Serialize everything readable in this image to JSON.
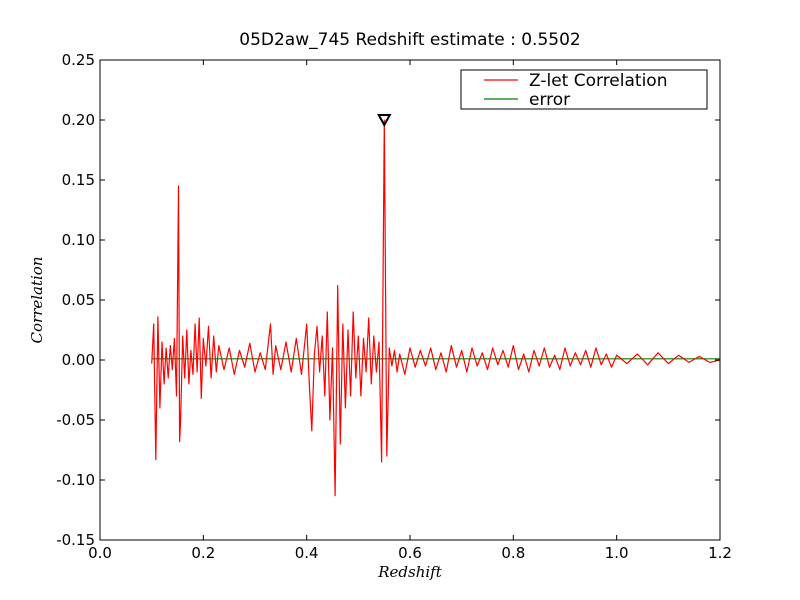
{
  "chart_data": {
    "type": "line",
    "title": "05D2aw_745 Redshift estimate : 0.5502",
    "xlabel": "Redshift",
    "ylabel": "Correlation",
    "xlim": [
      0.0,
      1.2
    ],
    "ylim": [
      -0.15,
      0.25
    ],
    "x_ticks": [
      0.0,
      0.2,
      0.4,
      0.6,
      0.8,
      1.0,
      1.2
    ],
    "x_tick_labels": [
      "0.0",
      "0.2",
      "0.4",
      "0.6",
      "0.8",
      "1.0",
      "1.2"
    ],
    "y_ticks": [
      -0.15,
      -0.1,
      -0.05,
      0.0,
      0.05,
      0.1,
      0.15,
      0.2,
      0.25
    ],
    "y_tick_labels": [
      "-0.15",
      "-0.10",
      "-0.05",
      "0.00",
      "0.05",
      "0.10",
      "0.15",
      "0.20",
      "0.25"
    ],
    "legend_position": "top-right",
    "marker": {
      "x": 0.5502,
      "y": 0.2,
      "symbol": "down-triangle"
    },
    "series": [
      {
        "name": "Z-let Correlation",
        "color": "#ff0000",
        "x": [
          0.1,
          0.104,
          0.108,
          0.112,
          0.116,
          0.12,
          0.124,
          0.128,
          0.132,
          0.136,
          0.14,
          0.144,
          0.148,
          0.152,
          0.154,
          0.156,
          0.16,
          0.164,
          0.168,
          0.172,
          0.176,
          0.18,
          0.184,
          0.188,
          0.192,
          0.196,
          0.2,
          0.205,
          0.21,
          0.215,
          0.22,
          0.225,
          0.23,
          0.24,
          0.25,
          0.26,
          0.27,
          0.28,
          0.29,
          0.3,
          0.31,
          0.32,
          0.33,
          0.335,
          0.34,
          0.35,
          0.36,
          0.37,
          0.38,
          0.39,
          0.4,
          0.405,
          0.41,
          0.415,
          0.42,
          0.425,
          0.43,
          0.435,
          0.44,
          0.445,
          0.45,
          0.455,
          0.46,
          0.465,
          0.47,
          0.475,
          0.48,
          0.485,
          0.49,
          0.495,
          0.5,
          0.505,
          0.51,
          0.515,
          0.52,
          0.525,
          0.53,
          0.535,
          0.54,
          0.545,
          0.5502,
          0.555,
          0.56,
          0.565,
          0.57,
          0.575,
          0.58,
          0.59,
          0.6,
          0.61,
          0.62,
          0.63,
          0.64,
          0.65,
          0.66,
          0.67,
          0.68,
          0.69,
          0.7,
          0.71,
          0.72,
          0.73,
          0.74,
          0.75,
          0.76,
          0.77,
          0.78,
          0.79,
          0.8,
          0.81,
          0.82,
          0.83,
          0.84,
          0.85,
          0.86,
          0.87,
          0.88,
          0.89,
          0.9,
          0.91,
          0.92,
          0.93,
          0.94,
          0.95,
          0.96,
          0.97,
          0.98,
          0.99,
          1.0,
          1.02,
          1.04,
          1.06,
          1.08,
          1.1,
          1.12,
          1.14,
          1.16,
          1.18,
          1.2
        ],
        "y": [
          -0.003,
          0.03,
          -0.083,
          0.036,
          -0.04,
          0.015,
          -0.02,
          0.01,
          -0.015,
          0.012,
          -0.008,
          0.018,
          -0.03,
          0.145,
          -0.068,
          -0.05,
          0.02,
          -0.015,
          0.025,
          -0.02,
          0.008,
          -0.012,
          0.03,
          -0.01,
          0.035,
          -0.032,
          0.018,
          -0.005,
          0.028,
          -0.015,
          0.02,
          -0.01,
          0.012,
          -0.008,
          0.01,
          -0.012,
          0.008,
          -0.006,
          0.014,
          -0.01,
          0.006,
          -0.008,
          0.03,
          -0.012,
          0.012,
          -0.008,
          0.015,
          -0.01,
          0.018,
          -0.012,
          0.03,
          -0.02,
          -0.059,
          0.005,
          0.028,
          -0.01,
          0.02,
          -0.03,
          0.04,
          -0.05,
          0.01,
          -0.113,
          0.062,
          -0.07,
          0.03,
          -0.04,
          0.025,
          -0.03,
          0.04,
          -0.015,
          0.02,
          -0.03,
          0.018,
          -0.01,
          0.035,
          -0.02,
          0.02,
          -0.01,
          0.015,
          -0.085,
          0.2,
          -0.08,
          0.01,
          -0.005,
          0.008,
          -0.01,
          0.005,
          -0.012,
          0.01,
          -0.006,
          0.008,
          -0.005,
          0.01,
          -0.008,
          0.006,
          -0.01,
          0.012,
          -0.006,
          0.008,
          -0.01,
          0.01,
          -0.005,
          0.006,
          -0.008,
          0.01,
          -0.004,
          0.008,
          -0.006,
          0.012,
          -0.008,
          0.005,
          -0.01,
          0.008,
          -0.005,
          0.01,
          -0.006,
          0.004,
          -0.008,
          0.01,
          -0.005,
          0.006,
          -0.004,
          0.008,
          -0.006,
          0.01,
          -0.004,
          0.005,
          -0.006,
          0.004,
          -0.003,
          0.005,
          -0.004,
          0.006,
          -0.003,
          0.004,
          -0.002,
          0.003,
          -0.002,
          0.0
        ]
      },
      {
        "name": "error",
        "color": "#008000",
        "x": [
          0.1,
          1.2
        ],
        "y": [
          0.001,
          0.001
        ]
      }
    ]
  }
}
